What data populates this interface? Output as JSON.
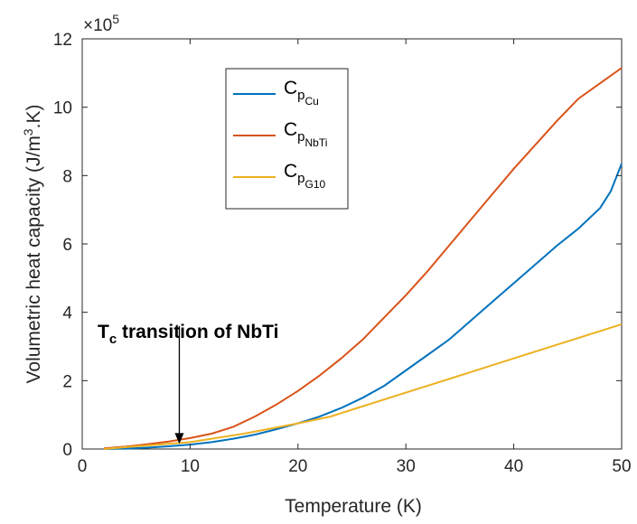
{
  "chart_data": {
    "type": "line",
    "xlabel": "Temperature (K)",
    "ylabel_main": "Volumetric heat capacity (J/m",
    "ylabel_sup": "3",
    "ylabel_tail": ".K)",
    "y_multiplier_prefix": "×10",
    "y_multiplier_exp": "5",
    "xlim": [
      0,
      50
    ],
    "ylim": [
      0,
      12
    ],
    "xticks": [
      0,
      10,
      20,
      30,
      40,
      50
    ],
    "yticks": [
      0,
      2,
      4,
      6,
      8,
      10,
      12
    ],
    "grid": false,
    "legend_position": "upper-left inside",
    "series": [
      {
        "symbol": "C",
        "sub": "p",
        "subsub": "Cu",
        "color": "#0072BD",
        "x": [
          2,
          4,
          6,
          8,
          10,
          12,
          14,
          16,
          18,
          20,
          22,
          24,
          26,
          28,
          30,
          32,
          34,
          36,
          38,
          40,
          42,
          44,
          46,
          48,
          49,
          50
        ],
        "y": [
          0.0,
          0.01,
          0.04,
          0.08,
          0.13,
          0.2,
          0.3,
          0.42,
          0.58,
          0.75,
          0.95,
          1.2,
          1.5,
          1.85,
          2.3,
          2.75,
          3.2,
          3.75,
          4.3,
          4.85,
          5.4,
          5.95,
          6.45,
          7.05,
          7.55,
          8.35
        ]
      },
      {
        "symbol": "C",
        "sub": "p",
        "subsub": "NbTi",
        "color": "#D95319",
        "x": [
          2,
          4,
          6,
          8,
          10,
          12,
          14,
          16,
          18,
          20,
          22,
          24,
          26,
          28,
          30,
          32,
          34,
          36,
          38,
          40,
          42,
          44,
          46,
          48,
          50
        ],
        "y": [
          0.02,
          0.07,
          0.14,
          0.22,
          0.32,
          0.45,
          0.65,
          0.95,
          1.3,
          1.7,
          2.15,
          2.65,
          3.2,
          3.85,
          4.5,
          5.2,
          5.95,
          6.7,
          7.45,
          8.2,
          8.9,
          9.6,
          10.25,
          10.7,
          11.15
        ]
      },
      {
        "symbol": "C",
        "sub": "p",
        "subsub": "G10",
        "color": "#EDB120",
        "x": [
          2,
          5,
          10,
          15,
          20,
          23,
          25,
          30,
          35,
          40,
          45,
          50
        ],
        "y": [
          0.0,
          0.08,
          0.2,
          0.45,
          0.75,
          0.95,
          1.15,
          1.65,
          2.15,
          2.65,
          3.15,
          3.65
        ]
      }
    ],
    "annotation": {
      "text_main": "T",
      "text_sub": "c",
      "text_tail": " transition of NbTi",
      "arrow_x": 9,
      "arrow_tip_y": 0.15,
      "arrow_tail_y": 3.6
    }
  }
}
